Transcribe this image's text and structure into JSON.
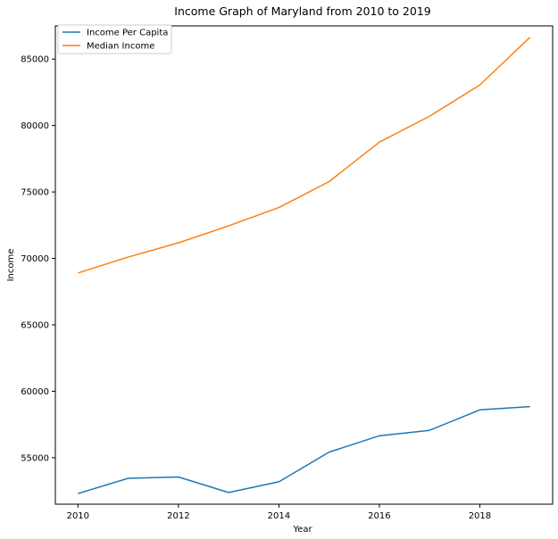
{
  "chart_data": {
    "type": "line",
    "title": "Income Graph of Maryland from 2010 to 2019",
    "xlabel": "Year",
    "ylabel": "Income",
    "x": [
      2010,
      2011,
      2012,
      2013,
      2014,
      2015,
      2016,
      2017,
      2018,
      2019
    ],
    "xlim": [
      2009.55,
      2019.45
    ],
    "ylim": [
      51500,
      87500
    ],
    "xticks": [
      2010,
      2012,
      2014,
      2016,
      2018
    ],
    "yticks": [
      55000,
      60000,
      65000,
      70000,
      75000,
      80000,
      85000
    ],
    "grid": false,
    "legend_position": "upper-left",
    "series": [
      {
        "name": "Income Per Capita",
        "color": "#1f77b4",
        "values": [
          52300,
          53450,
          53550,
          52380,
          53190,
          55420,
          56650,
          57060,
          58600,
          58850
        ]
      },
      {
        "name": "Median Income",
        "color": "#ff7f0e",
        "values": [
          68900,
          70100,
          71170,
          72450,
          73830,
          75780,
          78750,
          80700,
          83050,
          86650
        ]
      }
    ]
  }
}
